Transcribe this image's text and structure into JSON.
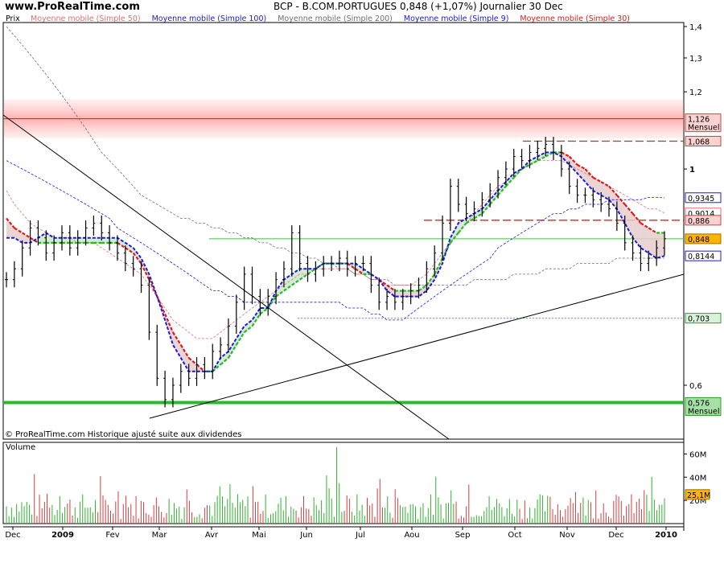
{
  "header": {
    "site": "www.ProRealTime.com",
    "title": "BCP - B.COM.PORTUGUES    0,848 (+1,07%)    Journalier  30 Dec"
  },
  "legend": {
    "prix": "Prix",
    "items": [
      {
        "label": "Moyenne mobile (Simple 50)",
        "color": "#e07070"
      },
      {
        "label": "Moyenne mobile (Simple 100)",
        "color": "#1a1adc"
      },
      {
        "label": "Moyenne mobile (Simple 200)",
        "color": "#707070"
      },
      {
        "label": "Moyenne mobile (Simple 9)",
        "color": "#1a1adc"
      },
      {
        "label": "Moyenne mobile (Simple 30)",
        "color": "#dc1a1a"
      }
    ]
  },
  "footer_note": "© ProRealTime.com  Historique ajusté suite aux dividendes",
  "volume_label": "Volume",
  "chart_data": {
    "type": "line",
    "title": "BCP - B.COM.PORTUGUES",
    "scale": "log",
    "y_ticks": [
      {
        "value": 1.4,
        "label": "1,4"
      },
      {
        "value": 1.3,
        "label": "1,3"
      },
      {
        "value": 1.2,
        "label": "1,2"
      },
      {
        "value": 1.0,
        "label": "1"
      },
      {
        "value": 0.6,
        "label": "0,6"
      }
    ],
    "x_ticks": [
      "Dec",
      "2009",
      "Fev",
      "Mar",
      "Avr",
      "Mai",
      "Jun",
      "Jul",
      "Aou",
      "Sep",
      "Oct",
      "Nov",
      "Dec",
      "2010"
    ],
    "price_tags": [
      {
        "value": 1.126,
        "label": "1,126",
        "sub": "Mensuel",
        "bg": "#fbd2d2",
        "border": "#d04040"
      },
      {
        "value": 1.068,
        "label": "1,068",
        "sub": "",
        "bg": "#fbd2d2",
        "border": "#d04040"
      },
      {
        "value": 0.9345,
        "label": "0,9345",
        "sub": "",
        "bg": "#ffffff",
        "border": "#1a1adc"
      },
      {
        "value": 0.9014,
        "label": "0,9014",
        "sub": "",
        "bg": "#ffffff",
        "border": "#e07070"
      },
      {
        "value": 0.886,
        "label": "0,886",
        "sub": "",
        "bg": "#fbd2d2",
        "border": "#d04040"
      },
      {
        "value": 0.848,
        "label": "0,848",
        "sub": "",
        "bg": "#ffb400",
        "border": "#a07000"
      },
      {
        "value": 0.8144,
        "label": "0,8144",
        "sub": "",
        "bg": "#ffffff",
        "border": "#1a1adc"
      },
      {
        "value": 0.703,
        "label": "0,703",
        "sub": "",
        "bg": "#d9f2d9",
        "border": "#30a030"
      },
      {
        "value": 0.576,
        "label": "0,576",
        "sub": "Mensuel",
        "bg": "#a6e0a6",
        "border": "#30a030"
      }
    ],
    "horizontal_levels": [
      {
        "value": 1.126,
        "style": "band-red"
      },
      {
        "value": 1.068,
        "style": "dash-red"
      },
      {
        "value": 0.886,
        "style": "dash-red"
      },
      {
        "value": 0.848,
        "style": "solid-green-thin"
      },
      {
        "value": 0.703,
        "style": "dot-green"
      },
      {
        "value": 0.576,
        "style": "solid-green-thick"
      }
    ],
    "close": [
      0.77,
      0.79,
      0.83,
      0.87,
      0.85,
      0.82,
      0.84,
      0.86,
      0.83,
      0.85,
      0.87,
      0.88,
      0.86,
      0.84,
      0.82,
      0.8,
      0.79,
      0.76,
      0.68,
      0.61,
      0.58,
      0.6,
      0.62,
      0.61,
      0.63,
      0.62,
      0.65,
      0.66,
      0.69,
      0.73,
      0.78,
      0.74,
      0.72,
      0.74,
      0.77,
      0.79,
      0.86,
      0.8,
      0.78,
      0.79,
      0.8,
      0.8,
      0.81,
      0.79,
      0.8,
      0.8,
      0.76,
      0.73,
      0.74,
      0.73,
      0.74,
      0.75,
      0.76,
      0.79,
      0.82,
      0.88,
      0.96,
      0.92,
      0.9,
      0.91,
      0.93,
      0.95,
      0.98,
      1.0,
      1.03,
      1.02,
      1.04,
      1.05,
      1.06,
      1.04,
      1.0,
      0.96,
      0.94,
      0.94,
      0.93,
      0.92,
      0.91,
      0.88,
      0.84,
      0.82,
      0.8,
      0.81,
      0.83,
      0.848
    ],
    "sma9": [
      0.85,
      0.85,
      0.84,
      0.84,
      0.85,
      0.86,
      0.85,
      0.85,
      0.85,
      0.85,
      0.85,
      0.85,
      0.85,
      0.85,
      0.85,
      0.84,
      0.83,
      0.81,
      0.78,
      0.74,
      0.7,
      0.66,
      0.64,
      0.62,
      0.62,
      0.62,
      0.62,
      0.64,
      0.65,
      0.67,
      0.69,
      0.7,
      0.72,
      0.72,
      0.75,
      0.77,
      0.78,
      0.79,
      0.79,
      0.79,
      0.8,
      0.8,
      0.8,
      0.8,
      0.8,
      0.79,
      0.78,
      0.77,
      0.75,
      0.74,
      0.74,
      0.74,
      0.74,
      0.75,
      0.77,
      0.8,
      0.85,
      0.88,
      0.89,
      0.9,
      0.91,
      0.93,
      0.95,
      0.97,
      0.99,
      1.0,
      1.02,
      1.03,
      1.04,
      1.04,
      1.03,
      1.01,
      0.99,
      0.97,
      0.95,
      0.94,
      0.93,
      0.91,
      0.88,
      0.85,
      0.83,
      0.82,
      0.81,
      0.8144
    ],
    "sma30": [
      0.89,
      0.87,
      0.86,
      0.85,
      0.84,
      0.84,
      0.84,
      0.84,
      0.84,
      0.84,
      0.84,
      0.84,
      0.84,
      0.84,
      0.84,
      0.83,
      0.82,
      0.8,
      0.77,
      0.74,
      0.71,
      0.68,
      0.66,
      0.64,
      0.63,
      0.62,
      0.62,
      0.63,
      0.64,
      0.66,
      0.68,
      0.69,
      0.71,
      0.72,
      0.74,
      0.75,
      0.76,
      0.77,
      0.78,
      0.79,
      0.8,
      0.8,
      0.8,
      0.8,
      0.79,
      0.78,
      0.78,
      0.77,
      0.76,
      0.75,
      0.75,
      0.75,
      0.75,
      0.76,
      0.78,
      0.81,
      0.84,
      0.86,
      0.88,
      0.89,
      0.9,
      0.92,
      0.94,
      0.96,
      0.98,
      1.0,
      1.01,
      1.02,
      1.03,
      1.04,
      1.04,
      1.03,
      1.01,
      1.0,
      0.98,
      0.97,
      0.96,
      0.94,
      0.92,
      0.9,
      0.88,
      0.87,
      0.86,
      0.86
    ],
    "sma50": [
      0.95,
      0.92,
      0.9,
      0.88,
      0.87,
      0.86,
      0.85,
      0.85,
      0.85,
      0.84,
      0.84,
      0.84,
      0.83,
      0.82,
      0.81,
      0.8,
      0.79,
      0.78,
      0.76,
      0.74,
      0.72,
      0.7,
      0.69,
      0.68,
      0.67,
      0.67,
      0.67,
      0.68,
      0.69,
      0.7,
      0.71,
      0.72,
      0.73,
      0.74,
      0.75,
      0.76,
      0.77,
      0.78,
      0.78,
      0.79,
      0.79,
      0.79,
      0.79,
      0.79,
      0.78,
      0.78,
      0.77,
      0.77,
      0.76,
      0.76,
      0.76,
      0.76,
      0.77,
      0.78,
      0.8,
      0.82,
      0.84,
      0.86,
      0.88,
      0.9,
      0.92,
      0.94,
      0.96,
      0.97,
      0.99,
      1.0,
      1.01,
      1.02,
      1.02,
      1.02,
      1.02,
      1.01,
      1.0,
      0.99,
      0.98,
      0.97,
      0.96,
      0.95,
      0.94,
      0.93,
      0.92,
      0.91,
      0.91,
      0.9014
    ],
    "sma100": [
      1.02,
      1.01,
      1.0,
      0.99,
      0.98,
      0.97,
      0.96,
      0.95,
      0.94,
      0.93,
      0.92,
      0.91,
      0.9,
      0.89,
      0.87,
      0.86,
      0.85,
      0.84,
      0.83,
      0.82,
      0.81,
      0.8,
      0.79,
      0.78,
      0.77,
      0.76,
      0.75,
      0.75,
      0.74,
      0.74,
      0.73,
      0.73,
      0.73,
      0.73,
      0.73,
      0.73,
      0.73,
      0.73,
      0.73,
      0.73,
      0.73,
      0.73,
      0.73,
      0.72,
      0.72,
      0.72,
      0.71,
      0.71,
      0.7,
      0.7,
      0.7,
      0.71,
      0.72,
      0.73,
      0.74,
      0.75,
      0.76,
      0.77,
      0.78,
      0.79,
      0.8,
      0.81,
      0.83,
      0.84,
      0.85,
      0.86,
      0.87,
      0.88,
      0.89,
      0.9,
      0.9,
      0.91,
      0.91,
      0.92,
      0.92,
      0.92,
      0.93,
      0.93,
      0.93,
      0.93,
      0.93,
      0.935,
      0.935,
      0.9345
    ],
    "sma200": [
      1.4,
      1.37,
      1.34,
      1.31,
      1.28,
      1.25,
      1.22,
      1.19,
      1.16,
      1.13,
      1.1,
      1.07,
      1.04,
      1.02,
      1.0,
      0.98,
      0.96,
      0.94,
      0.93,
      0.92,
      0.91,
      0.9,
      0.89,
      0.89,
      0.88,
      0.88,
      0.87,
      0.87,
      0.86,
      0.86,
      0.85,
      0.85,
      0.84,
      0.84,
      0.83,
      0.83,
      0.82,
      0.82,
      0.81,
      0.81,
      0.8,
      0.8,
      0.79,
      0.79,
      0.78,
      0.78,
      0.77,
      0.77,
      0.77,
      0.76,
      0.76,
      0.76,
      0.76,
      0.76,
      0.76,
      0.76,
      0.76,
      0.76,
      0.76,
      0.77,
      0.77,
      0.77,
      0.77,
      0.77,
      0.78,
      0.78,
      0.78,
      0.78,
      0.79,
      0.79,
      0.79,
      0.79,
      0.8,
      0.8,
      0.8,
      0.8,
      0.8,
      0.81,
      0.81,
      0.81,
      0.81,
      0.81,
      0.81,
      0.81
    ],
    "volume": {
      "ticks": [
        {
          "value": 60,
          "label": "60M"
        },
        {
          "value": 40,
          "label": "40M"
        },
        {
          "value": 20,
          "label": "20M"
        }
      ],
      "last": {
        "value": 25.1,
        "label": "25,1M"
      },
      "max": 66
    }
  }
}
